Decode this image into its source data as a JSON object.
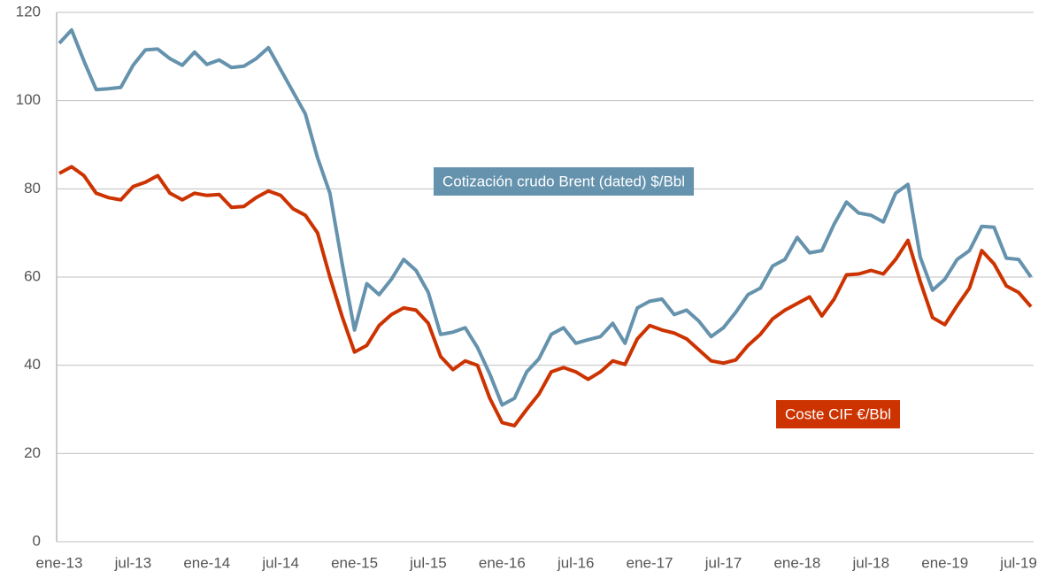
{
  "chart_data": {
    "type": "line",
    "categories": [
      "ene-13",
      null,
      null,
      null,
      null,
      null,
      "jul-13",
      null,
      null,
      null,
      null,
      null,
      "ene-14",
      null,
      null,
      null,
      null,
      null,
      "jul-14",
      null,
      null,
      null,
      null,
      null,
      "ene-15",
      null,
      null,
      null,
      null,
      null,
      "jul-15",
      null,
      null,
      null,
      null,
      null,
      "ene-16",
      null,
      null,
      null,
      null,
      null,
      "jul-16",
      null,
      null,
      null,
      null,
      null,
      "ene-17",
      null,
      null,
      null,
      null,
      null,
      "jul-17",
      null,
      null,
      null,
      null,
      null,
      "ene-18",
      null,
      null,
      null,
      null,
      null,
      "jul-18",
      null,
      null,
      null,
      null,
      null,
      "ene-19",
      null,
      null,
      null,
      null,
      null,
      "jul-19",
      null
    ],
    "series": [
      {
        "name": "Cotización crudo Brent (dated) $/Bbl",
        "color": "#6592ad",
        "values": [
          113,
          116,
          109,
          102.5,
          102.7,
          103,
          108,
          111.5,
          111.7,
          109.5,
          108,
          111,
          108.2,
          109.2,
          107.5,
          107.8,
          109.5,
          112,
          107,
          102,
          97,
          87,
          79,
          63,
          48,
          58.5,
          56,
          59.5,
          64,
          61.5,
          56.5,
          47,
          47.5,
          48.5,
          44,
          38,
          31,
          32.5,
          38.5,
          41.5,
          47,
          48.5,
          45,
          45.8,
          46.5,
          49.5,
          45,
          53,
          54.5,
          55,
          51.5,
          52.5,
          50,
          46.5,
          48.5,
          52,
          56,
          57.5,
          62.5,
          64,
          69,
          65.5,
          66,
          72,
          77,
          74.5,
          74,
          72.5,
          79,
          81,
          64.5,
          57,
          59.5,
          64,
          66,
          71.5,
          71.3,
          64.3,
          64,
          60
        ]
      },
      {
        "name": "Coste CIF €/Bbl",
        "color": "#cc3300",
        "values": [
          83.5,
          85,
          83,
          79,
          78,
          77.5,
          80.5,
          81.5,
          83,
          79,
          77.5,
          79,
          78.5,
          78.7,
          75.8,
          76,
          78,
          79.5,
          78.5,
          75.5,
          74,
          70,
          60,
          51,
          43,
          44.5,
          49,
          51.5,
          53,
          52.5,
          49.5,
          42,
          39,
          41,
          40,
          32.5,
          27,
          26.3,
          30,
          33.5,
          38.5,
          39.5,
          38.5,
          36.8,
          38.5,
          41,
          40.2,
          46,
          49,
          48,
          47.3,
          46,
          43.5,
          41,
          40.5,
          41.2,
          44.5,
          47,
          50.5,
          52.5,
          54,
          55.5,
          51.2,
          55,
          60.5,
          60.7,
          61.5,
          60.7,
          64,
          68.3,
          59,
          50.8,
          49.2,
          53.5,
          57.5,
          66,
          63,
          58,
          56.5,
          53.3
        ]
      }
    ],
    "ylim": [
      0,
      120
    ],
    "yticks": [
      0,
      20,
      40,
      60,
      80,
      100,
      120
    ],
    "grid": true
  }
}
